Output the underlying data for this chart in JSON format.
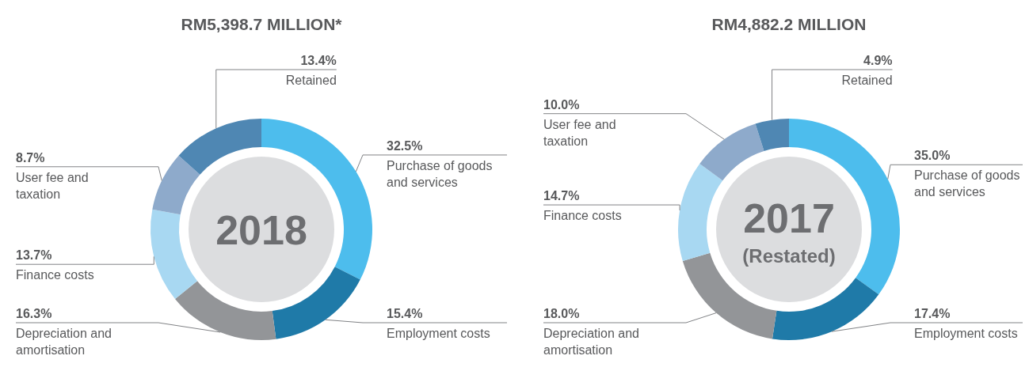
{
  "chart_data": [
    {
      "type": "donut",
      "title": "RM5,398.7 MILLION*",
      "annotations": [
        "2018"
      ],
      "categories": [
        "Purchase of goods and services",
        "Employment costs",
        "Depreciation and amortisation",
        "Finance costs",
        "User fee and taxation",
        "Retained"
      ],
      "values": [
        32.5,
        15.4,
        16.3,
        13.7,
        8.7,
        13.4
      ],
      "value_labels": [
        "32.5%",
        "15.4%",
        "16.3%",
        "13.7%",
        "8.7%",
        "13.4%"
      ],
      "colors": [
        "#4dbded",
        "#1f7aa8",
        "#939598",
        "#a8d8f2",
        "#8eaacb",
        "#4f87b3"
      ]
    },
    {
      "type": "donut",
      "title": "RM4,882.2 MILLION",
      "annotations": [
        "2017",
        "(Restated)"
      ],
      "categories": [
        "Purchase of goods and services",
        "Employment costs",
        "Depreciation and amortisation",
        "Finance costs",
        "User fee and taxation",
        "Retained"
      ],
      "values": [
        35.0,
        17.4,
        18.0,
        14.7,
        10.0,
        4.9
      ],
      "value_labels": [
        "35.0%",
        "17.4%",
        "18.0%",
        "14.7%",
        "10.0%",
        "4.9%"
      ],
      "colors": [
        "#4dbded",
        "#1f7aa8",
        "#939598",
        "#a8d8f2",
        "#8eaacb",
        "#4f87b3"
      ]
    }
  ]
}
